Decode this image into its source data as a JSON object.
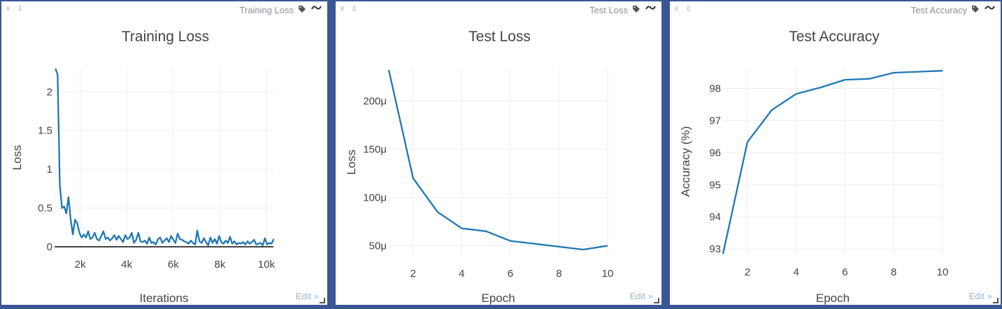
{
  "windows": [
    {
      "close_label": "x",
      "window_title": "Training Loss",
      "edit_label": "Edit »",
      "icons": [
        "close-icon",
        "pin-icon",
        "tag-icon",
        "smooth-icon"
      ]
    },
    {
      "close_label": "x",
      "window_title": "Test Loss",
      "edit_label": "Edit »",
      "icons": [
        "close-icon",
        "pin-icon",
        "tag-icon",
        "smooth-icon"
      ]
    },
    {
      "close_label": "x",
      "window_title": "Test Accuracy",
      "edit_label": "Edit »",
      "icons": [
        "close-icon",
        "pin-icon",
        "tag-icon",
        "smooth-icon"
      ]
    }
  ],
  "colors": {
    "line": "#1f77b4",
    "grid": "#eeeeee",
    "frame": "#3a5795",
    "axis_text": "#444444"
  },
  "chart_data": [
    {
      "type": "line",
      "title": "Training Loss",
      "xlabel": "Iterations",
      "ylabel": "Loss",
      "xlim": [
        900,
        10300
      ],
      "ylim": [
        0,
        2.3
      ],
      "xticks": [
        2000,
        4000,
        6000,
        8000,
        10000
      ],
      "xtick_labels": [
        "2k",
        "4k",
        "6k",
        "8k",
        "10k"
      ],
      "yticks": [
        0,
        0.5,
        1,
        1.5,
        2
      ],
      "ytick_labels": [
        "0",
        "0.5",
        "1",
        "1.5",
        "2"
      ],
      "grid": true,
      "zero_line": true,
      "series": [
        {
          "x": [
            938,
            1031,
            1125,
            1219,
            1313,
            1406,
            1500,
            1594,
            1688,
            1781,
            1875,
            1969,
            2063,
            2156,
            2250,
            2344,
            2438,
            2531,
            2625,
            2719,
            2813,
            2906,
            3000,
            3094,
            3188,
            3281,
            3375,
            3469,
            3563,
            3656,
            3750,
            3844,
            3938,
            4031,
            4125,
            4219,
            4313,
            4406,
            4500,
            4594,
            4688,
            4781,
            4875,
            4969,
            5063,
            5156,
            5250,
            5344,
            5438,
            5531,
            5625,
            5719,
            5813,
            5906,
            6000,
            6094,
            6188,
            6281,
            6375,
            6469,
            6563,
            6656,
            6750,
            6844,
            6938,
            7031,
            7125,
            7219,
            7313,
            7406,
            7500,
            7594,
            7688,
            7781,
            7875,
            7969,
            8063,
            8156,
            8250,
            8344,
            8438,
            8531,
            8625,
            8719,
            8813,
            8906,
            9000,
            9094,
            9188,
            9281,
            9375,
            9469,
            9563,
            9656,
            9750,
            9844,
            9938,
            10031,
            10125,
            10219,
            10313
          ],
          "values": [
            2.3,
            2.22,
            0.8,
            0.5,
            0.52,
            0.43,
            0.64,
            0.35,
            0.16,
            0.35,
            0.3,
            0.18,
            0.12,
            0.16,
            0.12,
            0.2,
            0.1,
            0.12,
            0.18,
            0.1,
            0.08,
            0.14,
            0.2,
            0.1,
            0.12,
            0.08,
            0.11,
            0.15,
            0.09,
            0.14,
            0.1,
            0.06,
            0.15,
            0.1,
            0.12,
            0.18,
            0.05,
            0.09,
            0.18,
            0.07,
            0.06,
            0.08,
            0.04,
            0.12,
            0.05,
            0.06,
            0.03,
            0.1,
            0.12,
            0.05,
            0.08,
            0.11,
            0.06,
            0.14,
            0.09,
            0.05,
            0.17,
            0.1,
            0.09,
            0.07,
            0.06,
            0.04,
            0.08,
            0.05,
            0.03,
            0.21,
            0.07,
            0.05,
            0.11,
            0.06,
            0.02,
            0.12,
            0.05,
            0.1,
            0.04,
            0.14,
            0.06,
            0.04,
            0.08,
            0.05,
            0.13,
            0.04,
            0.07,
            0.03,
            0.05,
            0.04,
            0.06,
            0.03,
            0.07,
            0.04,
            0.06,
            0.09,
            0.03,
            0.04,
            0.05,
            0.02,
            0.11,
            0.03,
            0.05,
            0.04,
            0.1
          ]
        }
      ]
    },
    {
      "type": "line",
      "title": "Test Loss",
      "xlabel": "Epoch",
      "ylabel": "Loss",
      "xlim": [
        1,
        10
      ],
      "ylim": [
        3.95e-05,
        0.0002335
      ],
      "xticks": [
        2,
        4,
        6,
        8,
        10
      ],
      "xtick_labels": [
        "2",
        "4",
        "6",
        "8",
        "10"
      ],
      "yticks": [
        5e-05,
        0.0001,
        0.00015,
        0.0002
      ],
      "ytick_labels": [
        "50μ",
        "100μ",
        "150μ",
        "200μ"
      ],
      "grid": true,
      "series": [
        {
          "x": [
            1,
            2,
            3,
            4,
            5,
            6,
            7,
            8,
            9,
            10
          ],
          "values": [
            0.000232,
            0.00012,
            8.5e-05,
            6.8e-05,
            6.5e-05,
            5.5e-05,
            5.2e-05,
            4.9e-05,
            4.6e-05,
            5e-05
          ]
        }
      ]
    },
    {
      "type": "line",
      "title": "Test Accuracy",
      "xlabel": "Epoch",
      "ylabel": "Accuracy (%)",
      "xlim": [
        1,
        10
      ],
      "ylim": [
        92.83,
        98.62
      ],
      "xticks": [
        2,
        4,
        6,
        8,
        10
      ],
      "xtick_labels": [
        "2",
        "4",
        "6",
        "8",
        "10"
      ],
      "yticks": [
        93,
        94,
        95,
        96,
        97,
        98
      ],
      "ytick_labels": [
        "93",
        "94",
        "95",
        "96",
        "97",
        "98"
      ],
      "grid": true,
      "series": [
        {
          "x": [
            1,
            2,
            3,
            4,
            5,
            6,
            7,
            8,
            9,
            10
          ],
          "values": [
            92.85,
            96.33,
            97.33,
            97.83,
            98.03,
            98.27,
            98.3,
            98.49,
            98.52,
            98.55
          ]
        }
      ]
    }
  ]
}
